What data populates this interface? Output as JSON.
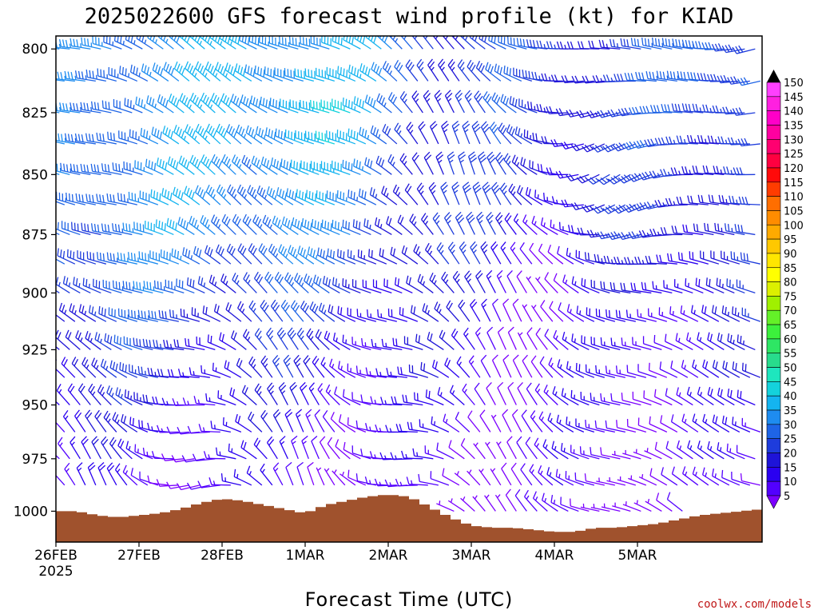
{
  "chart_data": {
    "type": "wind-barb time-height profile",
    "title": "2025022600 GFS forecast wind profile (kt) for KIAD",
    "xlabel": "Forecast Time (UTC)",
    "x_ticks": [
      "26FEB",
      "27FEB",
      "28FEB",
      "1MAR",
      "2MAR",
      "3MAR",
      "4MAR",
      "5MAR"
    ],
    "x_year": "2025",
    "x_range": [
      "2025-02-26T00Z",
      "2025-03-05T12Z"
    ],
    "y_ticks": [
      800,
      825,
      850,
      875,
      900,
      925,
      950,
      975,
      1000
    ],
    "y_range_hpa": [
      795,
      1015
    ],
    "colorbar": {
      "units": "kt",
      "levels": [
        5,
        10,
        15,
        20,
        25,
        30,
        35,
        40,
        45,
        50,
        55,
        60,
        65,
        70,
        75,
        80,
        85,
        90,
        95,
        100,
        105,
        110,
        115,
        120,
        125,
        130,
        135,
        140,
        145,
        150
      ],
      "colors": [
        "#7b00ff",
        "#5200ff",
        "#2a00f0",
        "#1e14d8",
        "#1e3cdc",
        "#1e64e6",
        "#1e8cf0",
        "#14b4f0",
        "#14d2dc",
        "#1ee6be",
        "#28dc8c",
        "#2ee664",
        "#3cf03c",
        "#64f028",
        "#a0f000",
        "#dcf000",
        "#ffff00",
        "#ffe600",
        "#ffc800",
        "#ffaa00",
        "#ff8c00",
        "#ff6e00",
        "#ff3c00",
        "#ff0a0a",
        "#ff0040",
        "#ff0070",
        "#ff00a0",
        "#ff00c8",
        "#ff20e0",
        "#ff40ff"
      ]
    },
    "terrain_color": "#a0522d",
    "surface_pressure_hpa": [
      [
        0,
        1000
      ],
      [
        6,
        1000
      ],
      [
        12,
        1002
      ],
      [
        18,
        1003
      ],
      [
        24,
        1002
      ],
      [
        30,
        1001
      ],
      [
        36,
        999
      ],
      [
        42,
        996
      ],
      [
        48,
        994
      ],
      [
        54,
        995
      ],
      [
        60,
        997
      ],
      [
        66,
        999
      ],
      [
        72,
        1001
      ],
      [
        78,
        997
      ],
      [
        84,
        995
      ],
      [
        90,
        993
      ],
      [
        96,
        992
      ],
      [
        102,
        993
      ],
      [
        108,
        998
      ],
      [
        114,
        1003
      ],
      [
        120,
        1007
      ],
      [
        126,
        1008
      ],
      [
        132,
        1008
      ],
      [
        138,
        1009
      ],
      [
        144,
        1010
      ],
      [
        150,
        1010
      ],
      [
        156,
        1008
      ],
      [
        162,
        1008
      ],
      [
        168,
        1007
      ],
      [
        174,
        1006
      ],
      [
        180,
        1004
      ],
      [
        186,
        1002
      ],
      [
        192,
        1001
      ],
      [
        198,
        1000
      ],
      [
        204,
        999
      ]
    ],
    "winds_description": "West to northwest flow 25-45 kt in the 800-900 hPa layer through 1MAR, brief northwest jet near 45 kt around 1MAR; weaker northerly to variable winds 5-15 kt near the surface 2MAR-4MAR; west-southwest 20-35 kt returning 4MAR-5MAR.",
    "wind_key_points": [
      {
        "t": 0,
        "p": 800,
        "dir": 290,
        "spd": 30
      },
      {
        "t": 24,
        "p": 800,
        "dir": 295,
        "spd": 40
      },
      {
        "t": 72,
        "p": 825,
        "dir": 300,
        "spd": 45
      },
      {
        "t": 120,
        "p": 850,
        "dir": 330,
        "spd": 25
      },
      {
        "t": 144,
        "p": 900,
        "dir": 320,
        "spd": 10
      },
      {
        "t": 168,
        "p": 850,
        "dir": 240,
        "spd": 25
      },
      {
        "t": 204,
        "p": 800,
        "dir": 265,
        "spd": 35
      }
    ]
  },
  "credit": "coolwx.com/models"
}
